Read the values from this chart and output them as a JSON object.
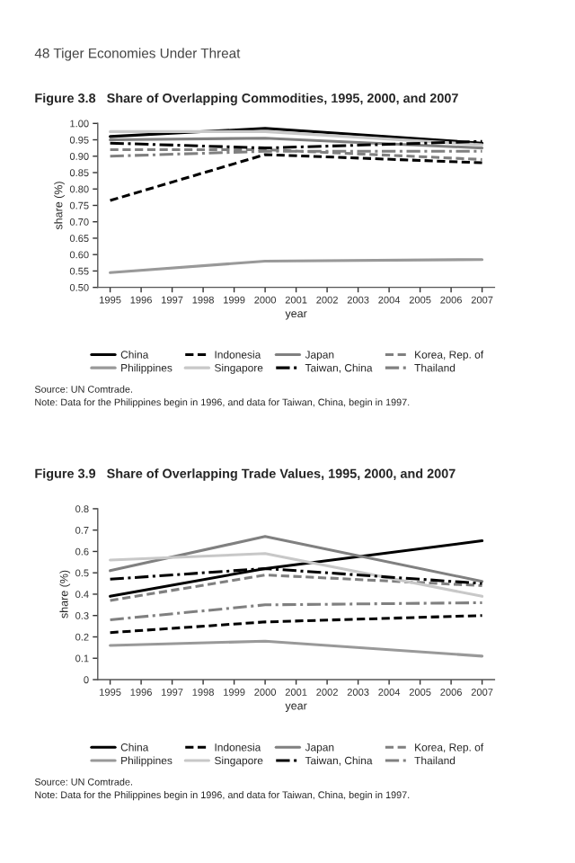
{
  "chart_data": [
    {
      "type": "other",
      "title": "48 Tiger Economies Under Threat"
    },
    {
      "type": "line",
      "title": "Figure 3.8   Share of Overlapping Commodities, 1995, 2000, and 2007",
      "xlabel": "year",
      "ylabel": "share (%)",
      "x": [
        1995,
        2000,
        2007
      ],
      "xlim": [
        1994.6,
        2007.4
      ],
      "xticks": [
        1995,
        1996,
        1997,
        1998,
        1999,
        2000,
        2001,
        2002,
        2003,
        2004,
        2005,
        2006,
        2007
      ],
      "ylim": [
        0.5,
        1.0
      ],
      "yticks": [
        {
          "value": 0.5,
          "label": "0.50"
        },
        {
          "value": 0.55,
          "label": "0.55"
        },
        {
          "value": 0.6,
          "label": "0.60"
        },
        {
          "value": 0.65,
          "label": "0.65"
        },
        {
          "value": 0.7,
          "label": "0.70"
        },
        {
          "value": 0.75,
          "label": "0.75"
        },
        {
          "value": 0.8,
          "label": "0.80"
        },
        {
          "value": 0.85,
          "label": "0.85"
        },
        {
          "value": 0.9,
          "label": "0.90"
        },
        {
          "value": 0.95,
          "label": "0.95"
        },
        {
          "value": 1.0,
          "label": "1.00"
        }
      ],
      "grid": false,
      "legend": "bottom",
      "series": [
        {
          "name": "China",
          "color": "#000000",
          "line_style": "solid",
          "values": [
            0.96,
            0.985,
            0.94
          ]
        },
        {
          "name": "Indonesia",
          "color": "#000000",
          "line_style": "dashed",
          "values": [
            0.765,
            0.905,
            0.88
          ]
        },
        {
          "name": "Japan",
          "color": "#808080",
          "line_style": "solid",
          "values": [
            0.95,
            0.955,
            0.925
          ]
        },
        {
          "name": "Korea, Rep. of",
          "color": "#808080",
          "line_style": "dashed",
          "values": [
            0.92,
            0.92,
            0.89
          ]
        },
        {
          "name": "Philippines",
          "color": "#999999",
          "line_style": "solid",
          "values": [
            0.545,
            0.58,
            0.585
          ]
        },
        {
          "name": "Singapore",
          "color": "#c8c8c8",
          "line_style": "solid",
          "values": [
            0.975,
            0.975,
            0.935
          ]
        },
        {
          "name": "Taiwan, China",
          "color": "#000000",
          "line_style": "dashdot",
          "values": [
            0.94,
            0.925,
            0.945
          ]
        },
        {
          "name": "Thailand",
          "color": "#808080",
          "line_style": "dashdot",
          "values": [
            0.9,
            0.915,
            0.915
          ]
        }
      ],
      "annotations": [
        "Source: UN Comtrade.",
        "Note: Data for the Philippines begin in 1996, and data for Taiwan, China, begin in 1997."
      ]
    },
    {
      "type": "line",
      "title": "Figure 3.9   Share of Overlapping Trade Values, 1995, 2000, and 2007",
      "xlabel": "year",
      "ylabel": "share (%)",
      "x": [
        1995,
        2000,
        2007
      ],
      "xlim": [
        1994.6,
        2007.4
      ],
      "xticks": [
        1995,
        1996,
        1997,
        1998,
        1999,
        2000,
        2001,
        2002,
        2003,
        2004,
        2005,
        2006,
        2007
      ],
      "ylim": [
        0,
        0.8
      ],
      "yticks": [
        0,
        0.1,
        0.2,
        0.3,
        0.4,
        0.5,
        0.6,
        0.7,
        0.8
      ],
      "grid": false,
      "legend": "bottom",
      "series": [
        {
          "name": "China",
          "color": "#000000",
          "line_style": "solid",
          "values": [
            0.39,
            0.52,
            0.65
          ]
        },
        {
          "name": "Indonesia",
          "color": "#000000",
          "line_style": "dashed",
          "values": [
            0.22,
            0.27,
            0.3
          ]
        },
        {
          "name": "Japan",
          "color": "#808080",
          "line_style": "solid",
          "values": [
            0.51,
            0.67,
            0.46
          ]
        },
        {
          "name": "Korea, Rep. of",
          "color": "#808080",
          "line_style": "dashed",
          "values": [
            0.37,
            0.49,
            0.44
          ]
        },
        {
          "name": "Philippines",
          "color": "#999999",
          "line_style": "solid",
          "values": [
            0.16,
            0.18,
            0.11
          ]
        },
        {
          "name": "Singapore",
          "color": "#c8c8c8",
          "line_style": "solid",
          "values": [
            0.56,
            0.59,
            0.39
          ]
        },
        {
          "name": "Taiwan, China",
          "color": "#000000",
          "line_style": "dashdot",
          "values": [
            0.47,
            0.52,
            0.45
          ]
        },
        {
          "name": "Thailand",
          "color": "#808080",
          "line_style": "dashdot",
          "values": [
            0.28,
            0.35,
            0.36
          ]
        }
      ],
      "annotations": [
        "Source: UN Comtrade.",
        "Note: Data for the Philippines begin in 1996, and data for Taiwan, China, begin in 1997."
      ]
    }
  ]
}
